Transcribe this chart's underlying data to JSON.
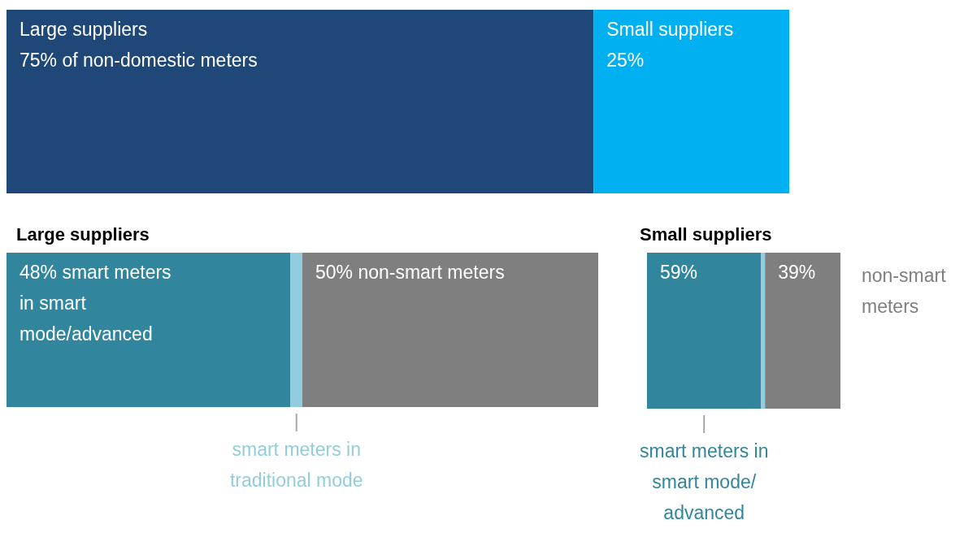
{
  "chart_data": [
    {
      "type": "bar",
      "orientation": "horizontal",
      "stacked": true,
      "categories": [
        null
      ],
      "series": [
        {
          "name": "Large suppliers",
          "color": "#1f4777",
          "values": [
            75
          ],
          "value_labels": [
            "75% of non-domestic meters"
          ]
        },
        {
          "name": "Small suppliers",
          "color": "#00b0f0",
          "values": [
            25
          ],
          "value_labels": [
            "25%"
          ]
        }
      ]
    },
    {
      "type": "bar",
      "orientation": "horizontal",
      "stacked": true,
      "title": "Large suppliers",
      "categories": [
        null
      ],
      "series": [
        {
          "color": "#31859c",
          "values": [
            48
          ],
          "value_labels": [
            "48% smart meters in smart mode/advanced"
          ]
        },
        {
          "name": "smart meters in traditional mode",
          "color": "#93cddd",
          "values": [
            2
          ],
          "value_labels": [
            null
          ]
        },
        {
          "color": "#7f7f7f",
          "values": [
            50
          ],
          "value_labels": [
            "50% non-smart meters"
          ]
        }
      ]
    },
    {
      "type": "bar",
      "orientation": "horizontal",
      "stacked": true,
      "title": "Small suppliers",
      "categories": [
        null
      ],
      "series": [
        {
          "name": "smart meters in smart mode/ advanced",
          "color": "#31859c",
          "values": [
            59
          ],
          "value_labels": [
            "59%"
          ]
        },
        {
          "color": "#93cddd",
          "values": [
            2
          ],
          "value_labels": [
            null
          ]
        },
        {
          "name": "non-smart meters",
          "color": "#7f7f7f",
          "values": [
            39
          ],
          "value_labels": [
            "39%"
          ]
        }
      ]
    }
  ]
}
